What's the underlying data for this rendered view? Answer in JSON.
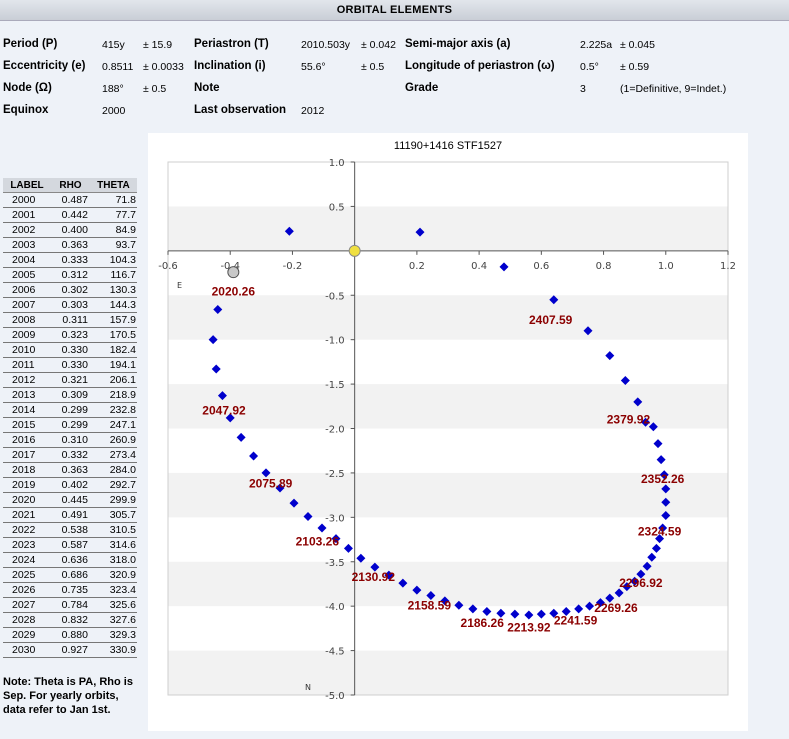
{
  "header": {
    "title": "ORBITAL ELEMENTS"
  },
  "elements": {
    "period_label": "Period (P)",
    "period_value": "415y",
    "period_err": "± 15.9",
    "periastron_label": "Periastron (T)",
    "periastron_value": "2010.503y",
    "periastron_err": "± 0.042",
    "semimajor_label": "Semi-major axis (a)",
    "semimajor_value": "2.225a",
    "semimajor_err": "± 0.045",
    "ecc_label": "Eccentricity (e)",
    "ecc_value": "0.8511",
    "ecc_err": "± 0.0033",
    "incl_label": "Inclination (i)",
    "incl_value": "55.6°",
    "incl_err": "± 0.5",
    "longperi_label": "Longitude of periastron (ω)",
    "longperi_value": "0.5°",
    "longperi_err": "± 0.59",
    "node_label": "Node (Ω)",
    "node_value": "188°",
    "node_err": "± 0.5",
    "note_label": "Note",
    "grade_label": "Grade",
    "grade_value": "3",
    "grade_note": "(1=Definitive, 9=Indet.)",
    "equinox_label": "Equinox",
    "equinox_value": "2000",
    "lastobs_label": "Last observation",
    "lastobs_value": "2012"
  },
  "ephemeris": {
    "headers": [
      "LABEL",
      "RHO",
      "THETA"
    ],
    "rows": [
      [
        "2000",
        "0.487",
        "71.8"
      ],
      [
        "2001",
        "0.442",
        "77.7"
      ],
      [
        "2002",
        "0.400",
        "84.9"
      ],
      [
        "2003",
        "0.363",
        "93.7"
      ],
      [
        "2004",
        "0.333",
        "104.3"
      ],
      [
        "2005",
        "0.312",
        "116.7"
      ],
      [
        "2006",
        "0.302",
        "130.3"
      ],
      [
        "2007",
        "0.303",
        "144.3"
      ],
      [
        "2008",
        "0.311",
        "157.9"
      ],
      [
        "2009",
        "0.323",
        "170.5"
      ],
      [
        "2010",
        "0.330",
        "182.4"
      ],
      [
        "2011",
        "0.330",
        "194.1"
      ],
      [
        "2012",
        "0.321",
        "206.1"
      ],
      [
        "2013",
        "0.309",
        "218.9"
      ],
      [
        "2014",
        "0.299",
        "232.8"
      ],
      [
        "2015",
        "0.299",
        "247.1"
      ],
      [
        "2016",
        "0.310",
        "260.9"
      ],
      [
        "2017",
        "0.332",
        "273.4"
      ],
      [
        "2018",
        "0.363",
        "284.0"
      ],
      [
        "2019",
        "0.402",
        "292.7"
      ],
      [
        "2020",
        "0.445",
        "299.9"
      ],
      [
        "2021",
        "0.491",
        "305.7"
      ],
      [
        "2022",
        "0.538",
        "310.5"
      ],
      [
        "2023",
        "0.587",
        "314.6"
      ],
      [
        "2024",
        "0.636",
        "318.0"
      ],
      [
        "2025",
        "0.686",
        "320.9"
      ],
      [
        "2026",
        "0.735",
        "323.4"
      ],
      [
        "2027",
        "0.784",
        "325.6"
      ],
      [
        "2028",
        "0.832",
        "327.6"
      ],
      [
        "2029",
        "0.880",
        "329.3"
      ],
      [
        "2030",
        "0.927",
        "330.9"
      ]
    ]
  },
  "note_text": "Note: Theta is PA, Rho is Sep. For yearly orbits, data refer to Jan 1st.",
  "chart_data": {
    "type": "scatter",
    "title": "11190+1416 STF1527",
    "xlim": [
      -0.6,
      1.2
    ],
    "ylim": [
      -5.0,
      1.0
    ],
    "x_ticks": [
      -0.6,
      -0.4,
      -0.2,
      0.2,
      0.4,
      0.6,
      0.8,
      1.0,
      1.2
    ],
    "x_tick_labels": [
      "-0.6",
      "-0.4",
      "-0.2",
      "0.2",
      "0.4",
      "0.6",
      "0.8",
      "1.0",
      "1.2"
    ],
    "y_ticks": [
      1.0,
      0.5,
      -0.5,
      -1.0,
      -1.5,
      -2.0,
      -2.5,
      -3.0,
      -3.5,
      -4.0,
      -4.5,
      -5.0
    ],
    "y_tick_labels": [
      "1.0",
      "0.5",
      "-0.5",
      "-1.0",
      "-1.5",
      "-2.0",
      "-2.5",
      "-3.0",
      "-3.5",
      "-4.0",
      "-4.5",
      "-5.0"
    ],
    "east_label": "E",
    "north_label": "N",
    "colors": {
      "orbit": "#0000cc",
      "primary": "#f0e040",
      "observed": "#c8c8c8",
      "label": "#8b0000",
      "band": "#f2f2f2"
    },
    "primary": {
      "x": 0.0,
      "y": 0.0
    },
    "observation": {
      "x": -0.39,
      "y": -0.24
    },
    "extra_points": [
      [
        -0.21,
        0.22
      ],
      [
        0.21,
        0.21
      ],
      [
        0.48,
        -0.18
      ]
    ],
    "orbit_points": [
      [
        -0.44,
        -0.66
      ],
      [
        -0.455,
        -1.0
      ],
      [
        -0.445,
        -1.33
      ],
      [
        -0.425,
        -1.63
      ],
      [
        -0.4,
        -1.88
      ],
      [
        -0.365,
        -2.1
      ],
      [
        -0.325,
        -2.31
      ],
      [
        -0.285,
        -2.5
      ],
      [
        -0.24,
        -2.67
      ],
      [
        -0.195,
        -2.84
      ],
      [
        -0.15,
        -2.99
      ],
      [
        -0.105,
        -3.12
      ],
      [
        -0.06,
        -3.24
      ],
      [
        -0.02,
        -3.35
      ],
      [
        0.02,
        -3.46
      ],
      [
        0.065,
        -3.56
      ],
      [
        0.11,
        -3.65
      ],
      [
        0.155,
        -3.74
      ],
      [
        0.2,
        -3.82
      ],
      [
        0.245,
        -3.88
      ],
      [
        0.29,
        -3.94
      ],
      [
        0.335,
        -3.99
      ],
      [
        0.38,
        -4.03
      ],
      [
        0.425,
        -4.06
      ],
      [
        0.47,
        -4.08
      ],
      [
        0.515,
        -4.09
      ],
      [
        0.56,
        -4.1
      ],
      [
        0.6,
        -4.09
      ],
      [
        0.64,
        -4.08
      ],
      [
        0.68,
        -4.06
      ],
      [
        0.72,
        -4.03
      ],
      [
        0.755,
        -4.0
      ],
      [
        0.79,
        -3.96
      ],
      [
        0.82,
        -3.91
      ],
      [
        0.85,
        -3.85
      ],
      [
        0.875,
        -3.78
      ],
      [
        0.9,
        -3.72
      ],
      [
        0.92,
        -3.64
      ],
      [
        0.94,
        -3.55
      ],
      [
        0.955,
        -3.45
      ],
      [
        0.97,
        -3.35
      ],
      [
        0.98,
        -3.24
      ],
      [
        0.99,
        -3.12
      ],
      [
        1.0,
        -2.98
      ],
      [
        1.0,
        -2.83
      ],
      [
        1.0,
        -2.68
      ],
      [
        0.995,
        -2.52
      ],
      [
        0.985,
        -2.35
      ],
      [
        0.975,
        -2.17
      ],
      [
        0.96,
        -1.98
      ],
      [
        0.935,
        -1.93
      ],
      [
        0.91,
        -1.7
      ],
      [
        0.87,
        -1.46
      ],
      [
        0.82,
        -1.18
      ],
      [
        0.75,
        -0.9
      ],
      [
        0.64,
        -0.55
      ]
    ],
    "annotations": [
      {
        "text": "2020.26",
        "x": -0.39,
        "y": -0.46
      },
      {
        "text": "2047.92",
        "x": -0.42,
        "y": -1.8
      },
      {
        "text": "2075.89",
        "x": -0.27,
        "y": -2.62
      },
      {
        "text": "2103.26",
        "x": -0.12,
        "y": -3.27
      },
      {
        "text": "2130.92",
        "x": 0.06,
        "y": -3.67
      },
      {
        "text": "2158.59",
        "x": 0.24,
        "y": -3.99
      },
      {
        "text": "2186.26",
        "x": 0.41,
        "y": -4.19
      },
      {
        "text": "2213.92",
        "x": 0.56,
        "y": -4.24
      },
      {
        "text": "2241.59",
        "x": 0.71,
        "y": -4.16
      },
      {
        "text": "2269.26",
        "x": 0.84,
        "y": -4.02
      },
      {
        "text": "2296.92",
        "x": 0.92,
        "y": -3.74
      },
      {
        "text": "2324.59",
        "x": 0.98,
        "y": -3.16
      },
      {
        "text": "2352.26",
        "x": 0.99,
        "y": -2.57
      },
      {
        "text": "2379.92",
        "x": 0.88,
        "y": -1.9
      },
      {
        "text": "2407.59",
        "x": 0.63,
        "y": -0.78
      }
    ]
  }
}
